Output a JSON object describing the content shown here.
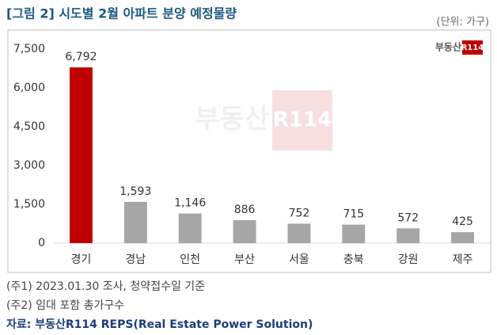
{
  "chart_data": {
    "type": "bar",
    "title": "[그림 2] 시도별 2월 아파트 분양 예정물량",
    "unit_label": "(단위: 가구)",
    "brand": {
      "text": "부동산",
      "mark": "R114"
    },
    "categories": [
      "경기",
      "경남",
      "인천",
      "부산",
      "서울",
      "충북",
      "강원",
      "제주"
    ],
    "values": [
      6792,
      1593,
      1146,
      886,
      752,
      715,
      572,
      425
    ],
    "value_labels": [
      "6,792",
      "1,593",
      "1,146",
      "886",
      "752",
      "715",
      "572",
      "425"
    ],
    "colors": [
      "#c00000",
      "#a6a6a6",
      "#a6a6a6",
      "#a6a6a6",
      "#a6a6a6",
      "#a6a6a6",
      "#a6a6a6",
      "#a6a6a6"
    ],
    "ylim": [
      0,
      7500
    ],
    "yticks": [
      0,
      {
        "value": 1500,
        "label": "1,500"
      },
      {
        "value": 3000,
        "label": "3,000"
      },
      {
        "value": 4500,
        "label": "4,500"
      },
      {
        "value": 6000,
        "label": "6,000"
      },
      {
        "value": 7500,
        "label": "7,500"
      }
    ],
    "grid": false,
    "notes": [
      "(주1) 2023.01.30 조사, 청약접수일 기준",
      "(주2) 임대 포함 총가구수"
    ],
    "source": "자료: 부동산R114 REPS(Real Estate Power Solution)"
  }
}
